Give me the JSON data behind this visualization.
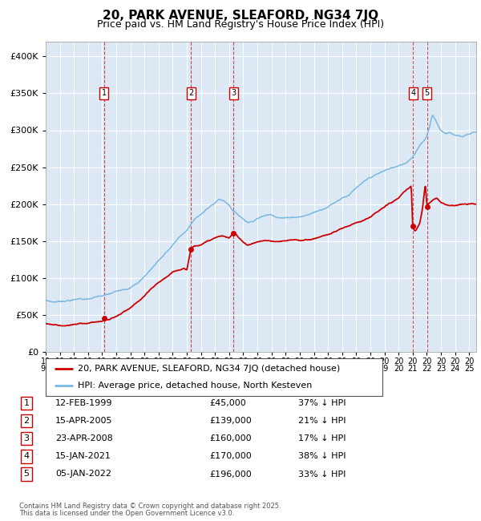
{
  "title_line1": "20, PARK AVENUE, SLEAFORD, NG34 7JQ",
  "title_line2": "Price paid vs. HM Land Registry's House Price Index (HPI)",
  "plot_bg_color": "#dce9f5",
  "grid_color": "#ffffff",
  "hpi_color": "#7ab8e0",
  "price_color": "#cc0000",
  "sales": [
    {
      "label": "1",
      "date_num": 1999.12,
      "price": 45000
    },
    {
      "label": "2",
      "date_num": 2005.29,
      "price": 139000
    },
    {
      "label": "3",
      "date_num": 2008.31,
      "price": 160000
    },
    {
      "label": "4",
      "date_num": 2021.04,
      "price": 170000
    },
    {
      "label": "5",
      "date_num": 2022.01,
      "price": 196000
    }
  ],
  "table_rows": [
    {
      "num": "1",
      "date": "12-FEB-1999",
      "price": "£45,000",
      "hpi": "37% ↓ HPI"
    },
    {
      "num": "2",
      "date": "15-APR-2005",
      "price": "£139,000",
      "hpi": "21% ↓ HPI"
    },
    {
      "num": "3",
      "date": "23-APR-2008",
      "price": "£160,000",
      "hpi": "17% ↓ HPI"
    },
    {
      "num": "4",
      "date": "15-JAN-2021",
      "price": "£170,000",
      "hpi": "38% ↓ HPI"
    },
    {
      "num": "5",
      "date": "05-JAN-2022",
      "price": "£196,000",
      "hpi": "33% ↓ HPI"
    }
  ],
  "legend_line1": "20, PARK AVENUE, SLEAFORD, NG34 7JQ (detached house)",
  "legend_line2": "HPI: Average price, detached house, North Kesteven",
  "footer_line1": "Contains HM Land Registry data © Crown copyright and database right 2025.",
  "footer_line2": "This data is licensed under the Open Government Licence v3.0.",
  "ylim_max": 420000,
  "yticks": [
    0,
    50000,
    100000,
    150000,
    200000,
    250000,
    300000,
    350000,
    400000
  ],
  "xmin": 1995.0,
  "xmax": 2025.5
}
